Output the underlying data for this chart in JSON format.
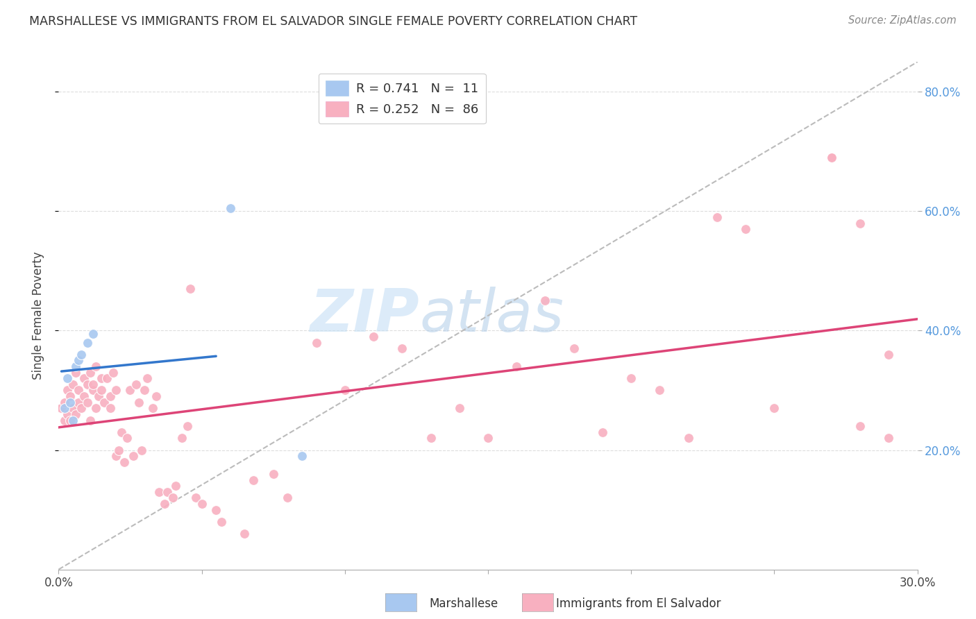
{
  "title": "MARSHALLESE VS IMMIGRANTS FROM EL SALVADOR SINGLE FEMALE POVERTY CORRELATION CHART",
  "source": "Source: ZipAtlas.com",
  "ylabel": "Single Female Poverty",
  "legend_label_1": "Marshallese",
  "legend_label_2": "Immigrants from El Salvador",
  "R1": 0.741,
  "N1": 11,
  "R2": 0.252,
  "N2": 86,
  "color1": "#a8c8f0",
  "color2": "#f8b0c0",
  "line1_color": "#3377cc",
  "line2_color": "#dd4477",
  "diagonal_color": "#bbbbbb",
  "xlim": [
    0.0,
    0.3
  ],
  "ylim": [
    0.0,
    0.85
  ],
  "background_color": "#ffffff",
  "grid_color": "#dddddd",
  "marshallese_x": [
    0.002,
    0.003,
    0.004,
    0.005,
    0.006,
    0.007,
    0.008,
    0.01,
    0.012,
    0.06,
    0.085
  ],
  "marshallese_y": [
    0.27,
    0.32,
    0.28,
    0.25,
    0.34,
    0.35,
    0.36,
    0.38,
    0.395,
    0.605,
    0.19
  ],
  "el_salvador_x": [
    0.001,
    0.002,
    0.002,
    0.003,
    0.003,
    0.004,
    0.004,
    0.005,
    0.005,
    0.006,
    0.006,
    0.007,
    0.007,
    0.008,
    0.009,
    0.009,
    0.01,
    0.01,
    0.011,
    0.011,
    0.012,
    0.012,
    0.013,
    0.013,
    0.014,
    0.015,
    0.015,
    0.016,
    0.017,
    0.018,
    0.018,
    0.019,
    0.02,
    0.02,
    0.021,
    0.022,
    0.023,
    0.024,
    0.025,
    0.026,
    0.027,
    0.028,
    0.029,
    0.03,
    0.031,
    0.033,
    0.034,
    0.035,
    0.037,
    0.038,
    0.04,
    0.041,
    0.043,
    0.045,
    0.046,
    0.048,
    0.05,
    0.055,
    0.057,
    0.065,
    0.068,
    0.075,
    0.08,
    0.09,
    0.1,
    0.11,
    0.12,
    0.13,
    0.14,
    0.15,
    0.16,
    0.17,
    0.18,
    0.19,
    0.2,
    0.21,
    0.22,
    0.23,
    0.24,
    0.25,
    0.27,
    0.28,
    0.29,
    0.29,
    0.28,
    0.27
  ],
  "el_salvador_y": [
    0.27,
    0.28,
    0.25,
    0.3,
    0.26,
    0.29,
    0.25,
    0.27,
    0.31,
    0.26,
    0.33,
    0.28,
    0.3,
    0.27,
    0.32,
    0.29,
    0.31,
    0.28,
    0.25,
    0.33,
    0.3,
    0.31,
    0.34,
    0.27,
    0.29,
    0.32,
    0.3,
    0.28,
    0.32,
    0.27,
    0.29,
    0.33,
    0.3,
    0.19,
    0.2,
    0.23,
    0.18,
    0.22,
    0.3,
    0.19,
    0.31,
    0.28,
    0.2,
    0.3,
    0.32,
    0.27,
    0.29,
    0.13,
    0.11,
    0.13,
    0.12,
    0.14,
    0.22,
    0.24,
    0.47,
    0.12,
    0.11,
    0.1,
    0.08,
    0.06,
    0.15,
    0.16,
    0.12,
    0.38,
    0.3,
    0.39,
    0.37,
    0.22,
    0.27,
    0.22,
    0.34,
    0.45,
    0.37,
    0.23,
    0.32,
    0.3,
    0.22,
    0.59,
    0.57,
    0.27,
    0.69,
    0.24,
    0.36,
    0.22,
    0.58,
    0.69
  ],
  "watermark_zip": "ZIP",
  "watermark_atlas": "atlas",
  "zip_color": "#c8dff5",
  "atlas_color": "#b8cce8"
}
